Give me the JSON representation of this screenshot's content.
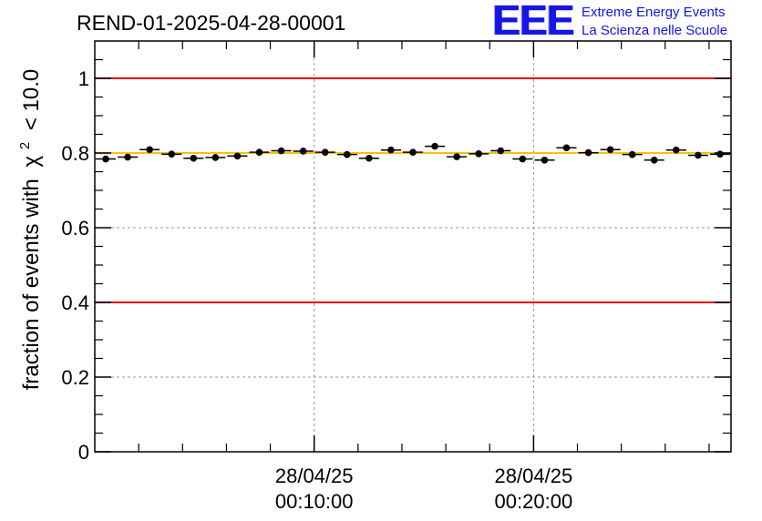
{
  "title": "REND-01-2025-04-28-00001",
  "logo": {
    "letters": "EEE",
    "line1": "Extreme Energy Events",
    "line2": "La Scienza nelle Scuole"
  },
  "colors": {
    "limit_line": "#e00000",
    "mean_line": "#ffc000",
    "markers": "#000000",
    "grid": "#999999",
    "logo": "#1515e6"
  },
  "chart_data": {
    "type": "scatter",
    "title": "REND-01-2025-04-28-00001",
    "ylabel": "fraction of events with",
    "ylabel_symbol": "χ",
    "ylabel_exponent": "2",
    "ylabel_tail": "< 10.0",
    "ylim": [
      0,
      1.1
    ],
    "yticks": [
      {
        "value": 0,
        "label": "0"
      },
      {
        "value": 0.2,
        "label": "0.2"
      },
      {
        "value": 0.4,
        "label": "0.4"
      },
      {
        "value": 0.6,
        "label": "0.6"
      },
      {
        "value": 0.8,
        "label": "0.8"
      },
      {
        "value": 1,
        "label": "1"
      }
    ],
    "xlim": [
      "28/04/25 00:00:00",
      "28/04/25 00:29:00"
    ],
    "xticks": [
      {
        "value": "28/04/25 00:10:00",
        "date": "28/04/25",
        "time": "00:10:00"
      },
      {
        "value": "28/04/25 00:20:00",
        "date": "28/04/25",
        "time": "00:20:00"
      }
    ],
    "grid": true,
    "reference_lines": [
      {
        "y": 1.0,
        "color": "#e00000"
      },
      {
        "y": 0.4,
        "color": "#e00000"
      },
      {
        "y": 0.8,
        "color": "#ffc000"
      }
    ],
    "points": [
      {
        "x": "00:00:30",
        "y": 0.784
      },
      {
        "x": "00:01:30",
        "y": 0.789
      },
      {
        "x": "00:02:30",
        "y": 0.809
      },
      {
        "x": "00:03:30",
        "y": 0.797
      },
      {
        "x": "00:04:30",
        "y": 0.786
      },
      {
        "x": "00:05:30",
        "y": 0.788
      },
      {
        "x": "00:06:30",
        "y": 0.792
      },
      {
        "x": "00:07:30",
        "y": 0.802
      },
      {
        "x": "00:08:30",
        "y": 0.806
      },
      {
        "x": "00:09:30",
        "y": 0.805
      },
      {
        "x": "00:10:30",
        "y": 0.802
      },
      {
        "x": "00:11:30",
        "y": 0.796
      },
      {
        "x": "00:12:30",
        "y": 0.786
      },
      {
        "x": "00:13:30",
        "y": 0.808
      },
      {
        "x": "00:14:30",
        "y": 0.802
      },
      {
        "x": "00:15:30",
        "y": 0.818
      },
      {
        "x": "00:16:30",
        "y": 0.79
      },
      {
        "x": "00:17:30",
        "y": 0.798
      },
      {
        "x": "00:18:30",
        "y": 0.806
      },
      {
        "x": "00:19:30",
        "y": 0.784
      },
      {
        "x": "00:20:30",
        "y": 0.781
      },
      {
        "x": "00:21:30",
        "y": 0.814
      },
      {
        "x": "00:22:30",
        "y": 0.801
      },
      {
        "x": "00:23:30",
        "y": 0.809
      },
      {
        "x": "00:24:30",
        "y": 0.796
      },
      {
        "x": "00:25:30",
        "y": 0.781
      },
      {
        "x": "00:26:30",
        "y": 0.808
      },
      {
        "x": "00:27:30",
        "y": 0.794
      },
      {
        "x": "00:28:30",
        "y": 0.797
      }
    ]
  }
}
